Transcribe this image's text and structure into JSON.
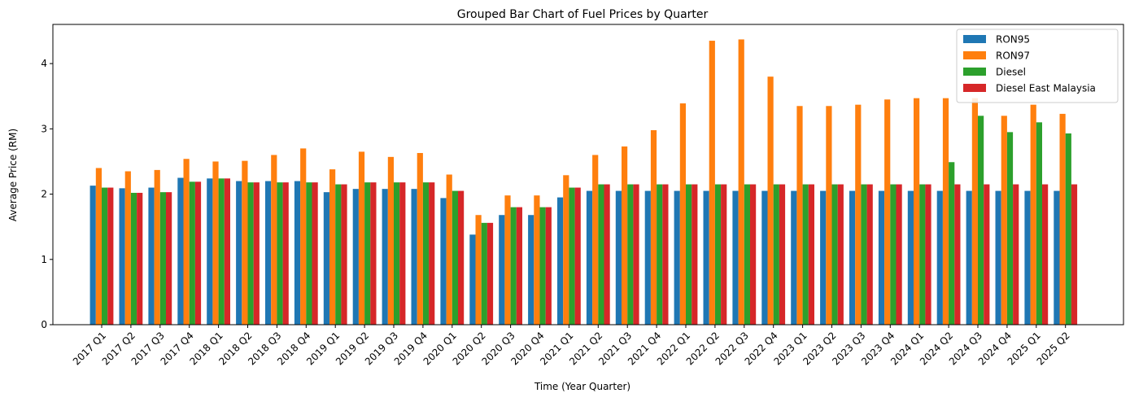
{
  "chart_data": {
    "type": "bar",
    "title": "Grouped Bar Chart of Fuel Prices by Quarter",
    "xlabel": "Time (Year Quarter)",
    "ylabel": "Average Price (RM)",
    "ylim": [
      0,
      4.6
    ],
    "yticks": [
      0,
      1,
      2,
      3,
      4
    ],
    "grid": false,
    "legend_position": "top-right",
    "categories": [
      "2017 Q1",
      "2017 Q2",
      "2017 Q3",
      "2017 Q4",
      "2018 Q1",
      "2018 Q2",
      "2018 Q3",
      "2018 Q4",
      "2019 Q1",
      "2019 Q2",
      "2019 Q3",
      "2019 Q4",
      "2020 Q1",
      "2020 Q2",
      "2020 Q3",
      "2020 Q4",
      "2021 Q1",
      "2021 Q2",
      "2021 Q3",
      "2021 Q4",
      "2022 Q1",
      "2022 Q2",
      "2022 Q3",
      "2022 Q4",
      "2023 Q1",
      "2023 Q2",
      "2023 Q3",
      "2023 Q4",
      "2024 Q1",
      "2024 Q2",
      "2024 Q3",
      "2024 Q4",
      "2025 Q1",
      "2025 Q2"
    ],
    "series": [
      {
        "name": "RON95",
        "color": "#1f77b4",
        "values": [
          2.13,
          2.09,
          2.1,
          2.25,
          2.24,
          2.2,
          2.2,
          2.2,
          2.03,
          2.08,
          2.08,
          2.08,
          1.94,
          1.38,
          1.68,
          1.68,
          1.95,
          2.05,
          2.05,
          2.05,
          2.05,
          2.05,
          2.05,
          2.05,
          2.05,
          2.05,
          2.05,
          2.05,
          2.05,
          2.05,
          2.05,
          2.05,
          2.05,
          2.05
        ]
      },
      {
        "name": "RON97",
        "color": "#ff7f0e",
        "values": [
          2.4,
          2.35,
          2.37,
          2.54,
          2.5,
          2.51,
          2.6,
          2.7,
          2.38,
          2.65,
          2.57,
          2.63,
          2.3,
          1.68,
          1.98,
          1.98,
          2.29,
          2.6,
          2.73,
          2.98,
          3.39,
          4.35,
          4.37,
          3.8,
          3.35,
          3.35,
          3.37,
          3.45,
          3.47,
          3.47,
          3.47,
          3.2,
          3.37,
          3.23
        ]
      },
      {
        "name": "Diesel",
        "color": "#2ca02c",
        "values": [
          2.1,
          2.02,
          2.03,
          2.19,
          2.24,
          2.18,
          2.18,
          2.18,
          2.15,
          2.18,
          2.18,
          2.18,
          2.05,
          1.56,
          1.8,
          1.8,
          2.1,
          2.15,
          2.15,
          2.15,
          2.15,
          2.15,
          2.15,
          2.15,
          2.15,
          2.15,
          2.15,
          2.15,
          2.15,
          2.49,
          3.2,
          2.95,
          3.1,
          2.93
        ]
      },
      {
        "name": "Diesel East Malaysia",
        "color": "#d62728",
        "values": [
          2.1,
          2.02,
          2.03,
          2.19,
          2.24,
          2.18,
          2.18,
          2.18,
          2.15,
          2.18,
          2.18,
          2.18,
          2.05,
          1.56,
          1.8,
          1.8,
          2.1,
          2.15,
          2.15,
          2.15,
          2.15,
          2.15,
          2.15,
          2.15,
          2.15,
          2.15,
          2.15,
          2.15,
          2.15,
          2.15,
          2.15,
          2.15,
          2.15,
          2.15
        ]
      }
    ]
  }
}
